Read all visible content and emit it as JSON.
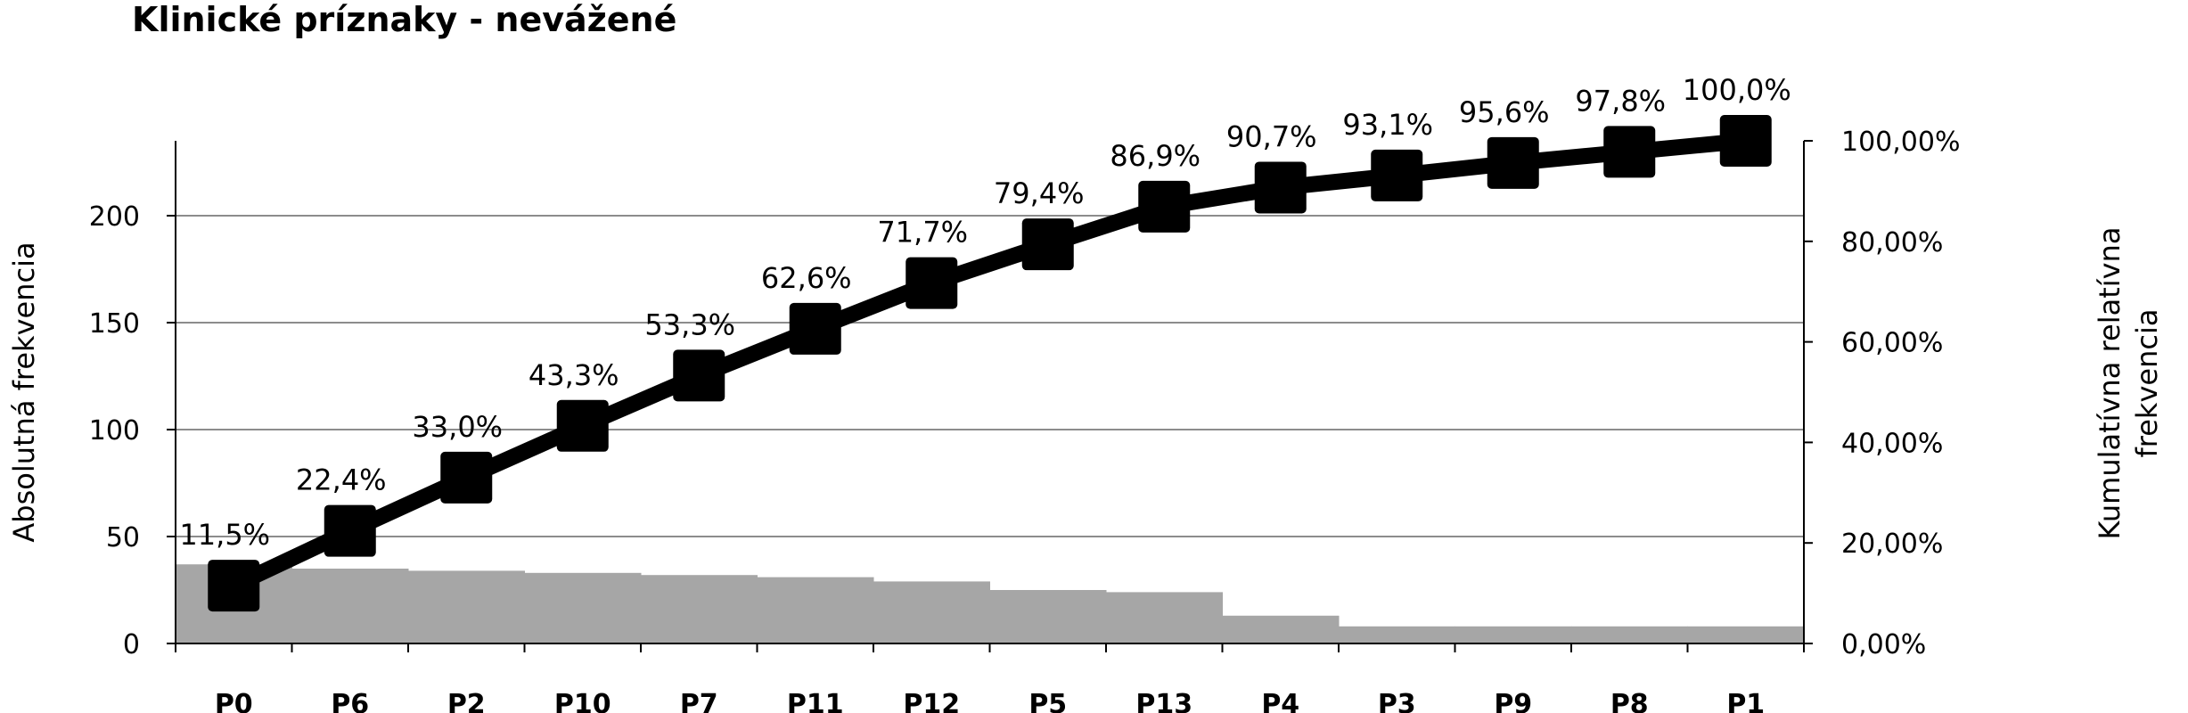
{
  "chart_data": {
    "type": "pareto",
    "title": "Klinické príznaky - nevážené",
    "ylabel": "Absolutná frekvencia",
    "y2label_lines": [
      "Kumulatívna relatívna",
      "frekvencia"
    ],
    "ylim": [
      0,
      235
    ],
    "yticks": [
      "0",
      "50",
      "100",
      "150",
      "200"
    ],
    "y2lim": [
      0,
      100
    ],
    "y2ticks": [
      "0,00%",
      "20,00%",
      "40,00%",
      "60,00%",
      "80,00%",
      "100,00%"
    ],
    "grid": true,
    "categories": [
      "P0",
      "P6",
      "P2",
      "P10",
      "P7",
      "P11",
      "P12",
      "P5",
      "P13",
      "P4",
      "P3",
      "P9",
      "P8",
      "P1"
    ],
    "bars": [
      37,
      35,
      34,
      33,
      32,
      31,
      29,
      25,
      24,
      13,
      8,
      8,
      8,
      8
    ],
    "cumulative": [
      11.5,
      22.4,
      33.0,
      43.3,
      53.3,
      62.6,
      71.7,
      79.4,
      86.9,
      90.7,
      93.1,
      95.6,
      97.8,
      100.0
    ],
    "cumulative_labels": [
      "11,5%",
      "22,4%",
      "33,0%",
      "43,3%",
      "53,3%",
      "62,6%",
      "71,7%",
      "79,4%",
      "86,9%",
      "90,7%",
      "93,1%",
      "95,6%",
      "97,8%",
      "100,0%"
    ],
    "colors": {
      "bars": "#a6a6a6",
      "line": "#000000",
      "grid": "#8c8c8c"
    }
  }
}
